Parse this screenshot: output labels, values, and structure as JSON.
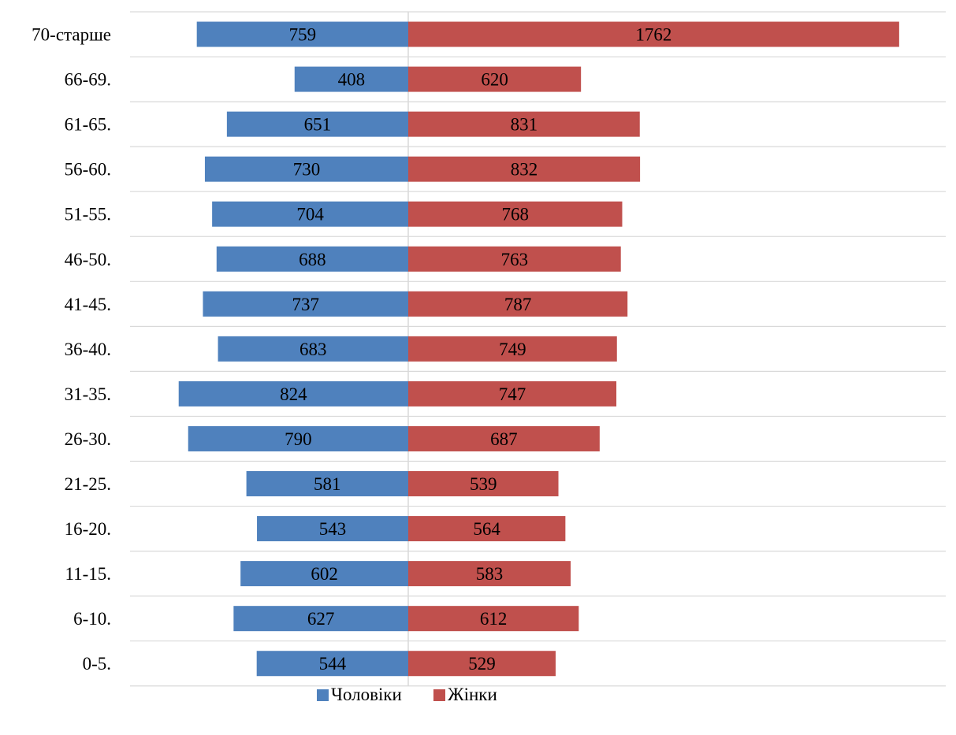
{
  "chart_data": {
    "type": "bar",
    "orientation": "horizontal",
    "layout": "population-pyramid",
    "title": "",
    "xlabel": "",
    "ylabel": "",
    "categories": [
      "70-старше",
      "66-69.",
      "61-65.",
      "56-60.",
      "51-55.",
      "46-50.",
      "41-45.",
      "36-40.",
      "31-35.",
      "26-30.",
      "21-25.",
      "16-20.",
      "11-15.",
      "6-10.",
      "0-5."
    ],
    "series": [
      {
        "name": "Чоловіки",
        "color": "#4f81bd",
        "side": "left",
        "values": [
          759,
          408,
          651,
          730,
          704,
          688,
          737,
          683,
          824,
          790,
          581,
          543,
          602,
          627,
          544
        ]
      },
      {
        "name": "Жінки",
        "color": "#c0504d",
        "side": "right",
        "values": [
          1762,
          620,
          831,
          832,
          768,
          763,
          787,
          749,
          747,
          687,
          539,
          564,
          583,
          612,
          529
        ]
      }
    ],
    "data_labels": true,
    "grid": "horizontal",
    "legend": "bottom-center"
  }
}
